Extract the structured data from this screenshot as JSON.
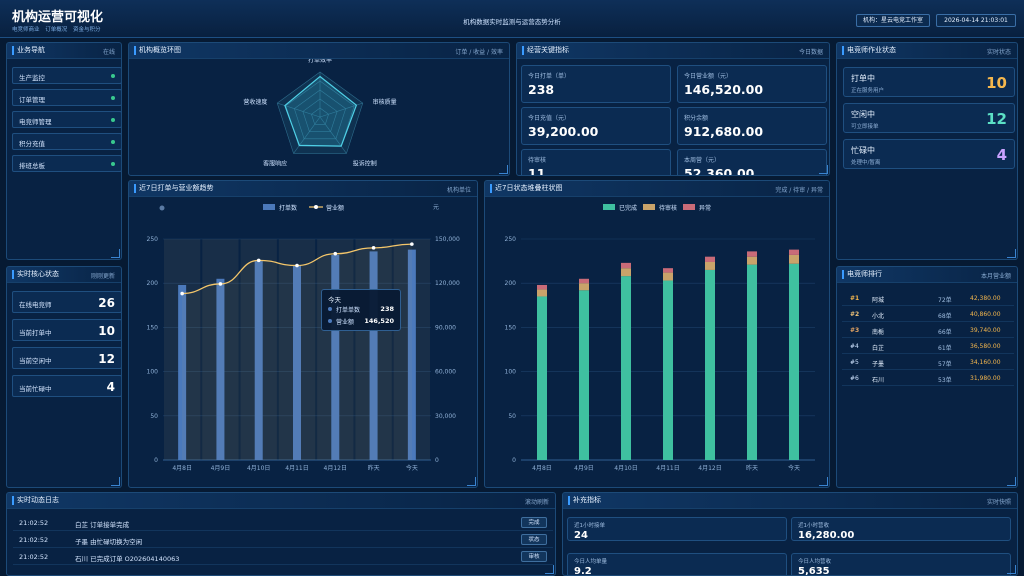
{
  "header": {
    "title": "机构运营可视化",
    "subtitle_items": [
      "电竞师商业",
      "订单概况",
      "资金与积分"
    ],
    "center": "机构数据实时监测与运营态势分析",
    "org_label": "机构：星云电竞工作室",
    "datetime": "2026-04-14 21:03:01"
  },
  "nav": {
    "title": "业务导航",
    "right": "在线",
    "items": [
      "生产监控",
      "订单管理",
      "电竞师管理",
      "积分充值",
      "排班总板"
    ]
  },
  "core": {
    "title": "实时核心状态",
    "right": "刚刚更新",
    "items": [
      {
        "label": "在线电竞师",
        "value": "26"
      },
      {
        "label": "当前打单中",
        "value": "10"
      },
      {
        "label": "当前空闲中",
        "value": "12"
      },
      {
        "label": "当前忙碌中",
        "value": "4"
      }
    ]
  },
  "radar": {
    "title": "机构概览环图",
    "right": "订单 / 收益 / 效率",
    "axes": [
      "打单效率",
      "审核质量",
      "投诉控制",
      "客服响应",
      "营收速度"
    ]
  },
  "kpis": {
    "title": "经营关键指标",
    "right": "今日数据",
    "items": [
      {
        "label": "今日打单（单）",
        "value": "238"
      },
      {
        "label": "今日营业额（元）",
        "value": "146,520.00"
      },
      {
        "label": "今日充值（元）",
        "value": "39,200.00"
      },
      {
        "label": "积分余额",
        "value": "912,680.00"
      },
      {
        "label": "待审核",
        "value": "11"
      },
      {
        "label": "本周营（元）",
        "value": "52,360.00"
      }
    ]
  },
  "worker_status": {
    "title": "电竞师作业状态",
    "right": "实时状态",
    "items": [
      {
        "label": "打单中",
        "sub": "正在服务用户",
        "value": "10",
        "color": "#f5b74d"
      },
      {
        "label": "空闲中",
        "sub": "可立即接单",
        "value": "12",
        "color": "#5ce0c6"
      },
      {
        "label": "忙碌中",
        "sub": "处理中/暂离",
        "value": "4",
        "color": "#c9a2ff"
      }
    ]
  },
  "combo_chart": {
    "title": "近7日打单与营业额趋势",
    "right": "机构单位",
    "legend": [
      "打单数",
      "营业额"
    ],
    "right_axis_unit": "元",
    "tooltip": {
      "title": "今天",
      "rows": [
        {
          "label": "打单单数",
          "value": "238"
        },
        {
          "label": "营业额",
          "value": "146,520"
        }
      ]
    }
  },
  "stack_chart": {
    "title": "近7日状态堆叠柱状图",
    "right": "完成 / 待审 / 异常",
    "legend": [
      "已完成",
      "待审核",
      "异常"
    ]
  },
  "ranking": {
    "title": "电竞师排行",
    "right": "本月营业额",
    "rows": [
      {
        "rank": "#1",
        "name": "阿城",
        "orders": "72单",
        "amount": "42,380.00"
      },
      {
        "rank": "#2",
        "name": "小北",
        "orders": "68单",
        "amount": "40,860.00"
      },
      {
        "rank": "#3",
        "name": "南栀",
        "orders": "66单",
        "amount": "39,740.00"
      },
      {
        "rank": "#4",
        "name": "白芷",
        "orders": "61单",
        "amount": "36,580.00"
      },
      {
        "rank": "#5",
        "name": "子墨",
        "orders": "57单",
        "amount": "34,160.00"
      },
      {
        "rank": "#6",
        "name": "石川",
        "orders": "53单",
        "amount": "31,980.00"
      }
    ]
  },
  "log": {
    "title": "实时动态日志",
    "right": "滚动刷新",
    "rows": [
      {
        "time": "21:02:52",
        "text": "白芷 订单接单完成",
        "tag": "完成"
      },
      {
        "time": "21:02:52",
        "text": "子墨 由忙碌切换为空闲",
        "tag": "状态"
      },
      {
        "time": "21:02:52",
        "text": "石川 已完成订单 O202604140063",
        "tag": "审核"
      }
    ]
  },
  "extra": {
    "title": "补充指标",
    "right": "实时快照",
    "items": [
      {
        "label": "近1小时接单",
        "value": "24"
      },
      {
        "label": "近1小时营收",
        "value": "16,280.00"
      },
      {
        "label": "今日人均单量",
        "value": "9.2"
      },
      {
        "label": "今日人均营收",
        "value": "5,635"
      }
    ]
  },
  "chart_data": [
    {
      "type": "bar",
      "title": "近7日打单与营业额趋势",
      "categories": [
        "4月8日",
        "4月9日",
        "4月10日",
        "4月11日",
        "4月12日",
        "昨天",
        "今天"
      ],
      "series": [
        {
          "name": "打单数",
          "type": "bar",
          "values": [
            198,
            205,
            225,
            220,
            232,
            236,
            238
          ],
          "axis": "left"
        },
        {
          "name": "营业额",
          "type": "line",
          "values": [
            113000,
            119500,
            135500,
            132000,
            140000,
            144000,
            146520
          ],
          "axis": "right"
        }
      ],
      "ylim": [
        0,
        250
      ],
      "y_ticks": [
        0,
        50,
        100,
        150,
        200,
        250
      ],
      "y2lim": [
        0,
        150000
      ],
      "y2_ticks": [
        "0",
        "30,000",
        "60,000",
        "90,000",
        "120,000",
        "150,000"
      ],
      "colors": {
        "bar": "#4b79bb",
        "line": "#f4c66a"
      },
      "legend": "top-center",
      "grid": true
    },
    {
      "type": "bar",
      "stacked": true,
      "title": "近7日状态堆叠柱状图",
      "categories": [
        "4月8日",
        "4月9日",
        "4月10日",
        "4月11日",
        "4月12日",
        "昨天",
        "今天"
      ],
      "series": [
        {
          "name": "已完成",
          "values": [
            185,
            192,
            208,
            203,
            215,
            221,
            222
          ],
          "color": "#3fc0a0"
        },
        {
          "name": "待审核",
          "values": [
            8,
            8,
            9,
            9,
            9,
            9,
            10
          ],
          "color": "#c9a36a"
        },
        {
          "name": "异常",
          "values": [
            5,
            5,
            6,
            5,
            6,
            6,
            6
          ],
          "color": "#c96b78"
        }
      ],
      "ylim": [
        0,
        250
      ],
      "y_ticks": [
        0,
        50,
        100,
        150,
        200,
        250
      ],
      "legend": "top-center",
      "grid": true
    },
    {
      "type": "radar",
      "title": "机构概览环图",
      "axes": [
        "打单效率",
        "审核质量",
        "投诉控制",
        "客服响应",
        "营收速度"
      ],
      "values": [
        0.9,
        0.85,
        0.8,
        0.78,
        0.82
      ]
    }
  ]
}
